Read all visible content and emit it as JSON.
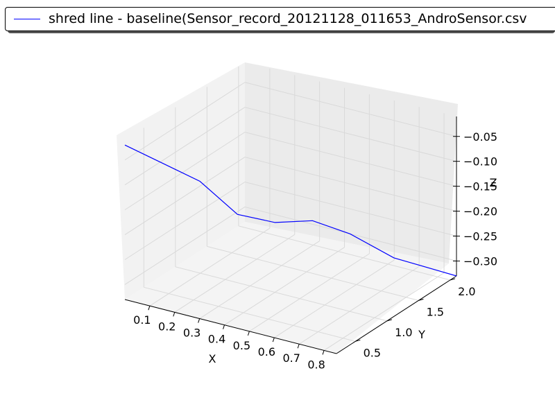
{
  "chart_data": {
    "type": "line",
    "projection": "3d",
    "title": "",
    "xlabel": "X",
    "ylabel": "Y",
    "zlabel": "Z",
    "xticks": [
      "0.1",
      "0.2",
      "0.3",
      "0.4",
      "0.5",
      "0.6",
      "0.7",
      "0.8"
    ],
    "yticks": [
      "0.5",
      "1.0",
      "1.5",
      "2.0"
    ],
    "zticks": [
      "−0.05",
      "−0.10",
      "−0.15",
      "−0.20",
      "−0.25",
      "−0.30"
    ],
    "xlim": [
      0.0,
      0.85
    ],
    "ylim": [
      0.2,
      2.1
    ],
    "zlim": [
      -0.33,
      -0.01
    ],
    "grid": true,
    "legend_position": "top",
    "series": [
      {
        "name": "shred line - baseline(Sensor_record_20121128_011653_AndroSensor.csv",
        "color": "#0000ff",
        "points": [
          {
            "x": 0.0,
            "y": 0.2,
            "z": -0.02
          },
          {
            "x": 0.1,
            "y": 0.4,
            "z": -0.06
          },
          {
            "x": 0.2,
            "y": 0.6,
            "z": -0.1
          },
          {
            "x": 0.3,
            "y": 0.8,
            "z": -0.17
          },
          {
            "x": 0.4,
            "y": 1.0,
            "z": -0.19
          },
          {
            "x": 0.5,
            "y": 1.2,
            "z": -0.19
          },
          {
            "x": 0.6,
            "y": 1.4,
            "z": -0.22
          },
          {
            "x": 0.7,
            "y": 1.7,
            "z": -0.28
          },
          {
            "x": 0.85,
            "y": 2.1,
            "z": -0.33
          }
        ]
      }
    ]
  }
}
